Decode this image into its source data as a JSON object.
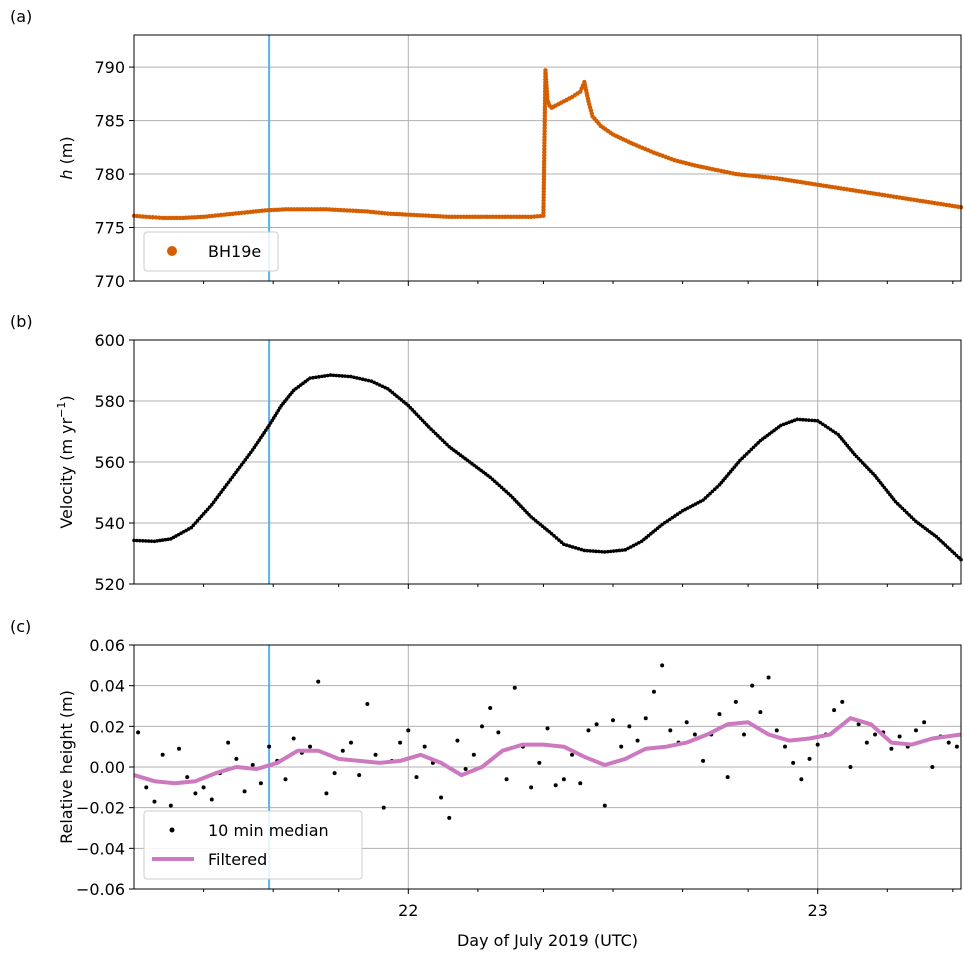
{
  "chart_data": [
    {
      "panel_label": "(a)",
      "type": "scatter",
      "ylabel": "h (m)",
      "xlim": [
        21.33,
        23.35
      ],
      "ylim": [
        770,
        793
      ],
      "yticks": [
        770,
        775,
        780,
        785,
        790
      ],
      "vertical_line_x": 21.66,
      "vertical_line_color": "#56b4e9",
      "grid": true,
      "legend": {
        "placement": "lower-left",
        "entries": [
          {
            "label": "BH19e",
            "marker": "dot"
          }
        ]
      },
      "series": [
        {
          "name": "BH19e",
          "color": "#d55e00",
          "x": [
            21.33,
            21.36,
            21.4,
            21.45,
            21.5,
            21.55,
            21.6,
            21.65,
            21.7,
            21.75,
            21.8,
            21.85,
            21.9,
            21.95,
            22.0,
            22.05,
            22.1,
            22.15,
            22.2,
            22.25,
            22.3,
            22.33,
            22.335,
            22.34,
            22.345,
            22.35,
            22.36,
            22.38,
            22.4,
            22.42,
            22.43,
            22.44,
            22.45,
            22.47,
            22.5,
            22.55,
            22.6,
            22.65,
            22.7,
            22.75,
            22.8,
            22.85,
            22.9,
            22.95,
            23.0,
            23.05,
            23.1,
            23.15,
            23.2,
            23.25,
            23.3,
            23.35
          ],
          "y": [
            776.1,
            776.0,
            775.9,
            775.9,
            776.0,
            776.2,
            776.4,
            776.6,
            776.7,
            776.7,
            776.7,
            776.6,
            776.5,
            776.3,
            776.2,
            776.1,
            776.0,
            776.0,
            776.0,
            776.0,
            776.0,
            776.1,
            789.7,
            786.9,
            786.4,
            786.2,
            786.4,
            786.8,
            787.2,
            787.7,
            788.6,
            786.8,
            785.4,
            784.5,
            783.7,
            782.8,
            782.0,
            781.3,
            780.8,
            780.4,
            780.0,
            779.8,
            779.6,
            779.3,
            779.0,
            778.7,
            778.4,
            778.1,
            777.8,
            777.5,
            777.2,
            776.9
          ]
        }
      ]
    },
    {
      "panel_label": "(b)",
      "type": "scatter",
      "ylabel": "Velocity (m yr⁻¹)",
      "xlim": [
        21.33,
        23.35
      ],
      "ylim": [
        520,
        600
      ],
      "yticks": [
        520,
        540,
        560,
        580,
        600
      ],
      "vertical_line_x": 21.66,
      "grid": true,
      "series": [
        {
          "name": "",
          "color": "#000000",
          "x": [
            21.33,
            21.38,
            21.42,
            21.47,
            21.52,
            21.57,
            21.62,
            21.66,
            21.69,
            21.72,
            21.76,
            21.81,
            21.86,
            21.91,
            21.95,
            22.0,
            22.05,
            22.1,
            22.15,
            22.2,
            22.25,
            22.3,
            22.35,
            22.38,
            22.43,
            22.48,
            22.53,
            22.57,
            22.62,
            22.67,
            22.72,
            22.76,
            22.81,
            22.86,
            22.91,
            22.95,
            23.0,
            23.05,
            23.09,
            23.14,
            23.19,
            23.24,
            23.29,
            23.35
          ],
          "y": [
            534.3,
            534.0,
            534.8,
            538.5,
            546.0,
            555.0,
            564.0,
            572.0,
            578.5,
            583.5,
            587.5,
            588.5,
            588.0,
            586.5,
            584.0,
            578.5,
            571.5,
            565.0,
            560.0,
            555.0,
            549.0,
            542.0,
            536.5,
            533.0,
            531.0,
            530.5,
            531.2,
            534.0,
            539.5,
            544.0,
            547.5,
            552.5,
            560.5,
            567.0,
            572.0,
            574.0,
            573.5,
            569.0,
            562.5,
            555.5,
            547.0,
            540.5,
            535.5,
            528.0
          ]
        }
      ]
    },
    {
      "panel_label": "(c)",
      "type": "scatter",
      "xlabel": "Day of July 2019 (UTC)",
      "ylabel": "Relative height (m)",
      "xlim": [
        21.33,
        23.35
      ],
      "ylim": [
        -0.06,
        0.06
      ],
      "yticks": [
        -0.06,
        -0.04,
        -0.02,
        0.0,
        0.02,
        0.04,
        0.06
      ],
      "xticks": [
        22,
        23
      ],
      "vertical_line_x": 21.66,
      "grid": true,
      "legend": {
        "placement": "lower-left",
        "entries": [
          {
            "label": "10 min median",
            "marker": "dot"
          },
          {
            "label": "Filtered",
            "marker": "line"
          }
        ]
      },
      "series": [
        {
          "name": "10 min median",
          "color": "#000000",
          "x": [
            21.34,
            21.36,
            21.38,
            21.4,
            21.42,
            21.44,
            21.46,
            21.48,
            21.5,
            21.52,
            21.54,
            21.56,
            21.58,
            21.6,
            21.62,
            21.64,
            21.66,
            21.68,
            21.7,
            21.72,
            21.74,
            21.76,
            21.78,
            21.8,
            21.82,
            21.84,
            21.86,
            21.88,
            21.9,
            21.92,
            21.94,
            21.96,
            21.98,
            22.0,
            22.02,
            22.04,
            22.06,
            22.08,
            22.1,
            22.12,
            22.14,
            22.16,
            22.18,
            22.2,
            22.22,
            22.24,
            22.26,
            22.28,
            22.3,
            22.32,
            22.34,
            22.36,
            22.38,
            22.4,
            22.42,
            22.44,
            22.46,
            22.48,
            22.5,
            22.52,
            22.54,
            22.56,
            22.58,
            22.6,
            22.62,
            22.64,
            22.66,
            22.68,
            22.7,
            22.72,
            22.74,
            22.76,
            22.78,
            22.8,
            22.82,
            22.84,
            22.86,
            22.88,
            22.9,
            22.92,
            22.94,
            22.96,
            22.98,
            23.0,
            23.02,
            23.04,
            23.06,
            23.08,
            23.1,
            23.12,
            23.14,
            23.16,
            23.18,
            23.2,
            23.22,
            23.24,
            23.26,
            23.28,
            23.3,
            23.32,
            23.34
          ],
          "y": [
            0.017,
            -0.01,
            -0.017,
            0.006,
            -0.019,
            0.009,
            -0.005,
            -0.013,
            -0.01,
            -0.016,
            -0.003,
            0.012,
            0.004,
            -0.012,
            0.001,
            -0.008,
            0.01,
            0.003,
            -0.006,
            0.014,
            0.007,
            0.01,
            0.042,
            -0.013,
            -0.003,
            0.008,
            0.012,
            -0.004,
            0.031,
            0.006,
            -0.02,
            0.003,
            0.012,
            0.018,
            -0.005,
            0.01,
            0.002,
            -0.015,
            -0.025,
            0.013,
            -0.001,
            0.006,
            0.02,
            0.029,
            0.017,
            -0.006,
            0.039,
            0.01,
            -0.01,
            0.002,
            0.019,
            -0.009,
            -0.006,
            0.006,
            -0.008,
            0.018,
            0.021,
            -0.019,
            0.023,
            0.01,
            0.02,
            0.013,
            0.024,
            0.037,
            0.05,
            0.018,
            0.012,
            0.022,
            0.016,
            0.003,
            0.016,
            0.026,
            -0.005,
            0.032,
            0.016,
            0.04,
            0.027,
            0.044,
            0.018,
            0.01,
            0.002,
            -0.006,
            0.004,
            0.011,
            0.016,
            0.028,
            0.032,
            0.0,
            0.021,
            0.012,
            0.016,
            0.017,
            0.009,
            0.015,
            0.01,
            0.018,
            0.022,
            0.0,
            0.015,
            0.012,
            0.01
          ]
        },
        {
          "name": "Filtered",
          "color": "#cc79c0",
          "x": [
            21.33,
            21.38,
            21.43,
            21.48,
            21.53,
            21.58,
            21.63,
            21.68,
            21.73,
            21.78,
            21.83,
            21.88,
            21.93,
            21.98,
            22.03,
            22.08,
            22.13,
            22.18,
            22.23,
            22.28,
            22.33,
            22.38,
            22.43,
            22.48,
            22.53,
            22.58,
            22.63,
            22.68,
            22.73,
            22.78,
            22.83,
            22.88,
            22.93,
            22.98,
            23.03,
            23.08,
            23.13,
            23.18,
            23.23,
            23.28,
            23.35
          ],
          "y": [
            -0.004,
            -0.007,
            -0.008,
            -0.007,
            -0.003,
            0.0,
            -0.001,
            0.002,
            0.008,
            0.008,
            0.004,
            0.003,
            0.002,
            0.003,
            0.006,
            0.002,
            -0.004,
            0.0,
            0.008,
            0.011,
            0.011,
            0.01,
            0.005,
            0.001,
            0.004,
            0.009,
            0.01,
            0.012,
            0.016,
            0.021,
            0.022,
            0.016,
            0.013,
            0.014,
            0.016,
            0.024,
            0.021,
            0.012,
            0.011,
            0.014,
            0.016
          ]
        }
      ]
    }
  ]
}
